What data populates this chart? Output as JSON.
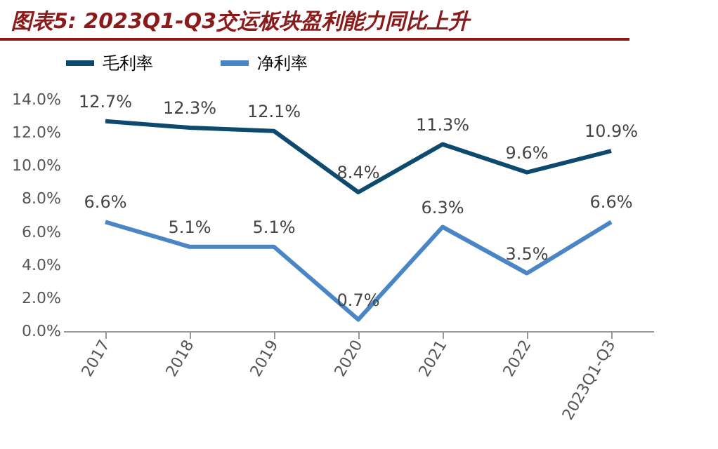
{
  "chart_data": {
    "type": "line",
    "title": "图表5: 2023Q1-Q3交运板块盈利能力同比上升",
    "categories": [
      "2017",
      "2018",
      "2019",
      "2020",
      "2021",
      "2022",
      "2023Q1-Q3"
    ],
    "series": [
      {
        "name": "毛利率",
        "color": "#0e4a6e",
        "values": [
          12.7,
          12.3,
          12.1,
          8.4,
          11.3,
          9.6,
          10.9
        ],
        "value_labels": [
          "12.7%",
          "12.3%",
          "12.1%",
          "8.4%",
          "11.3%",
          "9.6%",
          "10.9%"
        ]
      },
      {
        "name": "净利率",
        "color": "#4a86c6",
        "values": [
          6.6,
          5.1,
          5.1,
          0.7,
          6.3,
          3.5,
          6.6
        ],
        "value_labels": [
          "6.6%",
          "5.1%",
          "5.1%",
          "0.7%",
          "6.3%",
          "3.5%",
          "6.6%"
        ]
      }
    ],
    "ylim": [
      0,
      14
    ],
    "yticks": [
      {
        "value": 0,
        "label": "0.0%"
      },
      {
        "value": 2,
        "label": "2.0%"
      },
      {
        "value": 4,
        "label": "4.0%"
      },
      {
        "value": 6,
        "label": "6.0%"
      },
      {
        "value": 8,
        "label": "8.0%"
      },
      {
        "value": 10,
        "label": "10.0%"
      },
      {
        "value": 12,
        "label": "12.0%"
      },
      {
        "value": 14,
        "label": "14.0%"
      }
    ],
    "grid": false,
    "legend": "top",
    "marker": "none",
    "line_style": "solid"
  }
}
